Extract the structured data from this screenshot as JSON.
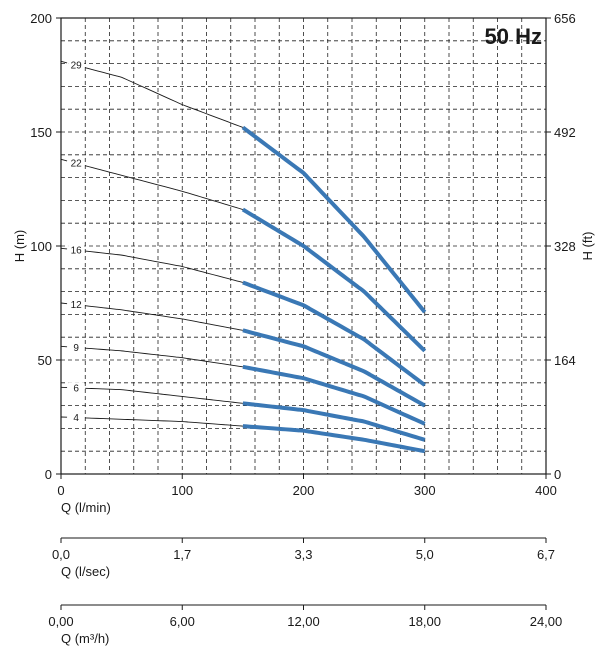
{
  "chart_data": {
    "type": "line",
    "title": "50 Hz",
    "xlabel": "Q (l/min)",
    "ylabel": "H (m)",
    "ylabel_right": "H (ft)",
    "xlim": [
      0,
      400
    ],
    "ylim": [
      0,
      200
    ],
    "x_ticks": [
      0,
      100,
      200,
      300,
      400
    ],
    "x_tick_labels": [
      "0",
      "100",
      "200",
      "300",
      "400"
    ],
    "y_ticks": [
      0,
      50,
      100,
      150,
      200
    ],
    "y_tick_labels": [
      "0",
      "50",
      "100",
      "150",
      "200"
    ],
    "y_right_ticks": [
      0,
      50,
      100,
      150,
      200
    ],
    "y_right_tick_labels": [
      "0",
      "164",
      "328",
      "492",
      "656"
    ],
    "grid": true,
    "secondary_axes": [
      {
        "label": "Q (l/sec)",
        "ticks": [
          0,
          100,
          200,
          300,
          400
        ],
        "tick_labels": [
          "0,0",
          "1,7",
          "3,3",
          "5,0",
          "6,7"
        ]
      },
      {
        "label": "Q (m³/h)",
        "ticks": [
          0,
          100,
          200,
          300,
          400
        ],
        "tick_labels": [
          "0,00",
          "6,00",
          "12,00",
          "18,00",
          "24,00"
        ]
      }
    ],
    "operating_range": [
      150,
      300
    ],
    "series": [
      {
        "name": "29",
        "x": [
          0,
          50,
          100,
          150,
          200,
          250,
          300
        ],
        "y": [
          181,
          174,
          162,
          152,
          132,
          104,
          71
        ]
      },
      {
        "name": "22",
        "x": [
          0,
          50,
          100,
          150,
          200,
          250,
          300
        ],
        "y": [
          138,
          131,
          124,
          116,
          100,
          80,
          54
        ]
      },
      {
        "name": "16",
        "x": [
          0,
          50,
          100,
          150,
          200,
          250,
          300
        ],
        "y": [
          99,
          96,
          91,
          84,
          74,
          59,
          39
        ]
      },
      {
        "name": "12",
        "x": [
          0,
          50,
          100,
          150,
          200,
          250,
          300
        ],
        "y": [
          75,
          72,
          68,
          63,
          56,
          45,
          30
        ]
      },
      {
        "name": "9",
        "x": [
          0,
          50,
          100,
          150,
          200,
          250,
          300
        ],
        "y": [
          56,
          54,
          51,
          47,
          42,
          34,
          22
        ]
      },
      {
        "name": "6",
        "x": [
          0,
          50,
          100,
          150,
          200,
          250,
          300
        ],
        "y": [
          38,
          37,
          34,
          31,
          28,
          23,
          15
        ]
      },
      {
        "name": "4",
        "x": [
          0,
          50,
          100,
          150,
          200,
          250,
          300
        ],
        "y": [
          25,
          24,
          23,
          21,
          19,
          15,
          10
        ]
      }
    ]
  }
}
